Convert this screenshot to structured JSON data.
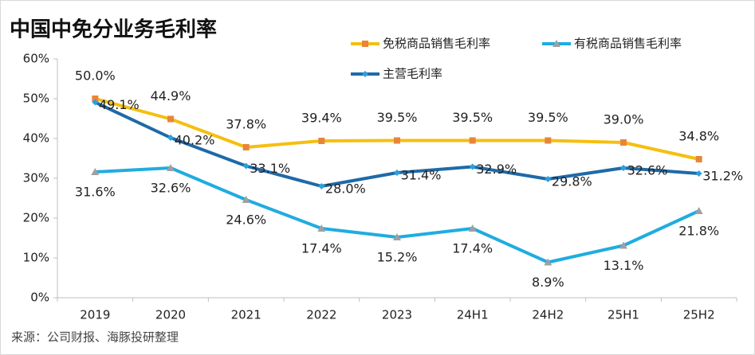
{
  "chart_data": {
    "type": "line",
    "title": "中国中免分业务毛利率",
    "source": "来源：公司财报、海豚投研整理",
    "categories": [
      "2019",
      "2020",
      "2021",
      "2022",
      "2023",
      "24H1",
      "24H2",
      "25H1",
      "25H2"
    ],
    "series": [
      {
        "name": "免税商品销售毛利率",
        "color": "#f5bf10",
        "marker_color": "#e8853a",
        "marker": "square",
        "label_color": "#e3a21a",
        "values": [
          50.0,
          44.9,
          37.8,
          39.4,
          39.5,
          39.5,
          39.5,
          39.0,
          34.8
        ],
        "value_labels": [
          "50.0%",
          "44.9%",
          "37.8%",
          "39.4%",
          "39.5%",
          "39.5%",
          "39.5%",
          "39.0%",
          "34.8%"
        ]
      },
      {
        "name": "有税商品销售毛利率",
        "color": "#20ace0",
        "marker_color": "#a0a0a0",
        "marker": "triangle",
        "label_color": "#1ea3d2",
        "values": [
          31.6,
          32.6,
          24.6,
          17.4,
          15.2,
          17.4,
          8.9,
          13.1,
          21.8
        ],
        "value_labels": [
          "31.6%",
          "32.6%",
          "24.6%",
          "17.4%",
          "15.2%",
          "17.4%",
          "8.9%",
          "13.1%",
          "21.8%"
        ]
      },
      {
        "name": "主营毛利率",
        "color": "#1f6aa8",
        "marker_color": "#2aa0dc",
        "marker": "diamond",
        "label_color": "#111111",
        "values": [
          49.1,
          40.2,
          33.1,
          28.0,
          31.4,
          32.9,
          29.8,
          32.6,
          31.2
        ],
        "value_labels": [
          "49.1%",
          "40.2%",
          "33.1%",
          "28.0%",
          "31.4%",
          "32.9%",
          "29.8%",
          "32.6%",
          "31.2%"
        ]
      }
    ],
    "ylim": [
      0,
      60
    ],
    "yticks": [
      {
        "value": 0,
        "label": "0%"
      },
      {
        "value": 10,
        "label": "10%"
      },
      {
        "value": 20,
        "label": "20%"
      },
      {
        "value": 30,
        "label": "30%"
      },
      {
        "value": 40,
        "label": "40%"
      },
      {
        "value": 50,
        "label": "50%"
      },
      {
        "value": 60,
        "label": "60%"
      }
    ],
    "grid": false
  }
}
